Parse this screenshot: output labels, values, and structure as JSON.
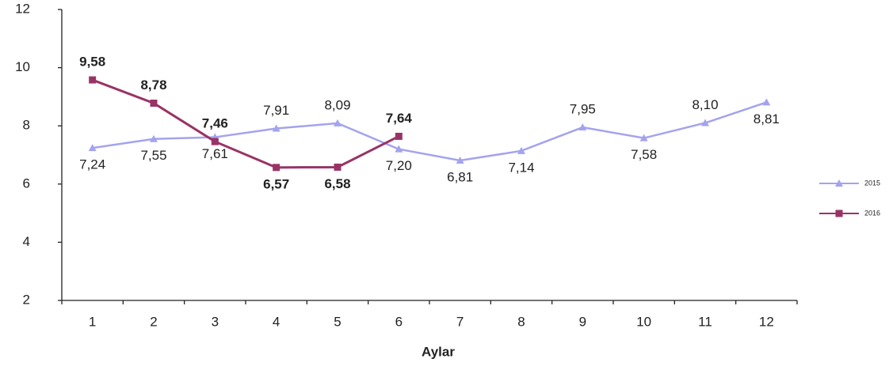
{
  "chart_data": {
    "type": "line",
    "x_label": "Aylar",
    "categories": [
      "1",
      "2",
      "3",
      "4",
      "5",
      "6",
      "7",
      "8",
      "9",
      "10",
      "11",
      "12"
    ],
    "series": [
      {
        "name": "2015",
        "color": "#a3a3ef",
        "marker": "triangle",
        "bold_labels": false,
        "values": [
          7.24,
          7.55,
          7.61,
          7.91,
          8.09,
          7.2,
          6.81,
          7.14,
          7.95,
          7.58,
          8.1,
          8.81
        ],
        "value_labels": [
          "7,24",
          "7,55",
          "7,61",
          "7,91",
          "8,09",
          "7,20",
          "6,81",
          "7,14",
          "7,95",
          "7,58",
          "8,10",
          "8,81"
        ]
      },
      {
        "name": "2016",
        "color": "#993366",
        "marker": "square",
        "bold_labels": true,
        "values": [
          9.58,
          8.78,
          7.46,
          6.57,
          6.58,
          7.64,
          null,
          null,
          null,
          null,
          null,
          null
        ],
        "value_labels": [
          "9,58",
          "8,78",
          "7,46",
          "6,57",
          "6,58",
          "7,64",
          null,
          null,
          null,
          null,
          null,
          null
        ]
      }
    ],
    "ylim": [
      2,
      12
    ],
    "yticks": [
      2,
      4,
      6,
      8,
      10,
      12
    ],
    "grid": false,
    "legend": "right"
  }
}
